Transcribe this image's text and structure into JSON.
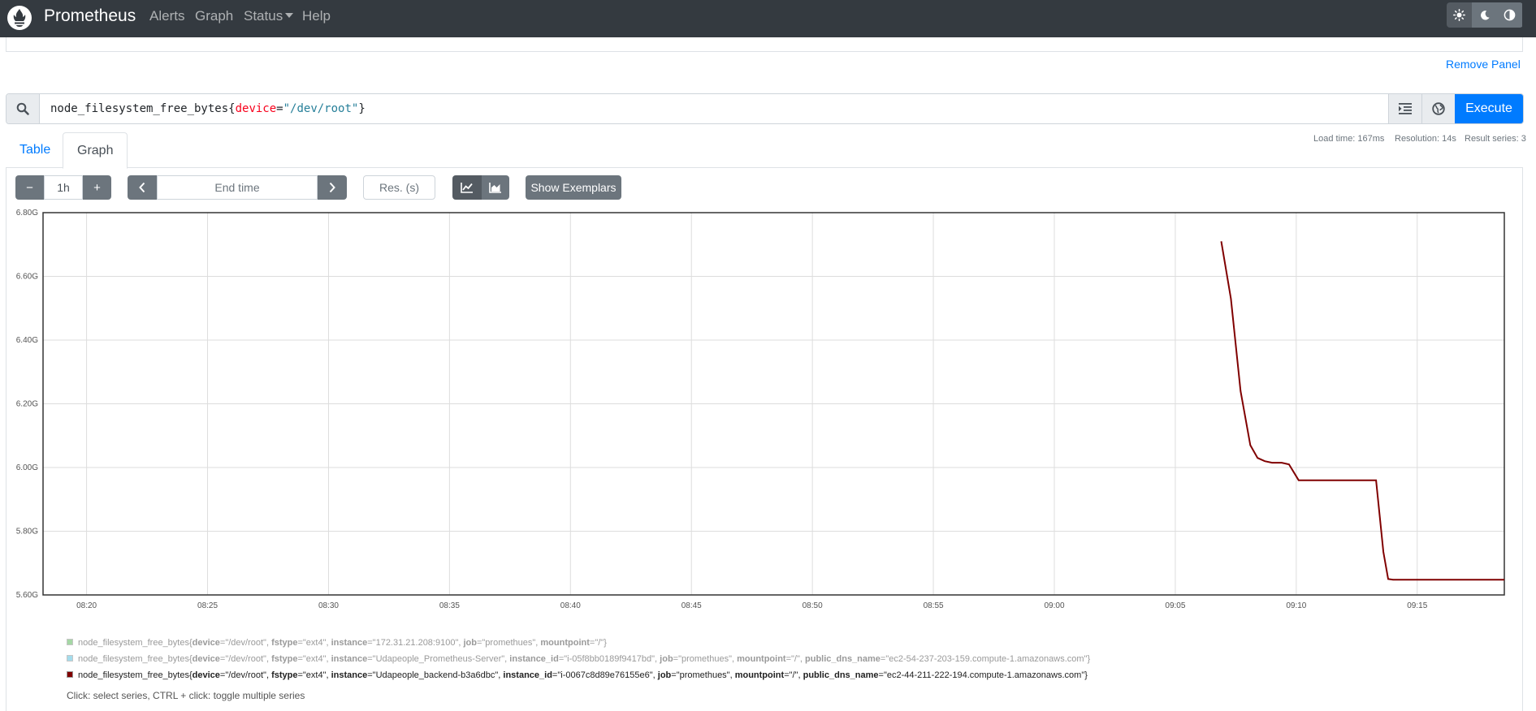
{
  "navbar": {
    "brand": "Prometheus",
    "items": [
      {
        "label": "Alerts"
      },
      {
        "label": "Graph"
      },
      {
        "label": "Status"
      },
      {
        "label": "Help"
      }
    ],
    "theme_icons": [
      "sun-icon",
      "moon-icon",
      "contrast-icon"
    ]
  },
  "panel": {
    "remove_label": "Remove Panel",
    "expression": {
      "metric": "node_filesystem_free_bytes",
      "open": "{",
      "label_name": "device",
      "eq": "=",
      "label_value": "\"/dev/root\"",
      "close": "}"
    },
    "execute_label": "Execute",
    "stats": {
      "load_time": "Load time: 167ms",
      "resolution": "Resolution: 14s",
      "result_series": "Result series: 3"
    },
    "tabs": [
      {
        "label": "Table"
      },
      {
        "label": "Graph"
      }
    ],
    "controls": {
      "minus": "−",
      "range": "1h",
      "plus": "+",
      "end_time_placeholder": "End time",
      "res_placeholder": "Res. (s)",
      "show_exemplars": "Show Exemplars"
    }
  },
  "chart_data": {
    "type": "line",
    "x_ticks": [
      "08:20",
      "08:25",
      "08:30",
      "08:35",
      "08:40",
      "08:45",
      "08:50",
      "08:55",
      "09:00",
      "09:05",
      "09:10",
      "09:15"
    ],
    "y_ticks": [
      "5.60G",
      "5.80G",
      "6.00G",
      "6.20G",
      "6.40G",
      "6.60G",
      "6.80G"
    ],
    "ylim": [
      5.6,
      6.8
    ],
    "y_unit": "G",
    "x_unit": "minutes after 08:20",
    "xlim": [
      -1.8,
      58.6
    ],
    "grid": true,
    "series": [
      {
        "color": "#800000",
        "x": [
          46.9,
          47.3,
          47.7,
          48.1,
          48.4,
          48.7,
          49.0,
          49.4,
          49.7,
          50.1,
          50.7,
          51.4,
          52.0,
          52.6,
          53.3,
          53.6,
          53.8,
          54.0,
          56.0,
          58.6
        ],
        "y": [
          6.71,
          6.53,
          6.24,
          6.07,
          6.03,
          6.02,
          6.015,
          6.015,
          6.01,
          5.96,
          5.96,
          5.96,
          5.96,
          5.96,
          5.96,
          5.735,
          5.65,
          5.648,
          5.648,
          5.648
        ]
      }
    ]
  },
  "legend": {
    "items": [
      {
        "color": "#5cb85c",
        "muted": true,
        "metric": "node_filesystem_free_bytes",
        "labels": [
          {
            "k": "device",
            "v": "\"/dev/root\""
          },
          {
            "k": "fstype",
            "v": "\"ext4\""
          },
          {
            "k": "instance",
            "v": "\"172.31.21.208:9100\""
          },
          {
            "k": "job",
            "v": "\"promethues\""
          },
          {
            "k": "mountpoint",
            "v": "\"/\""
          }
        ]
      },
      {
        "color": "#5bc0de",
        "muted": true,
        "metric": "node_filesystem_free_bytes",
        "labels": [
          {
            "k": "device",
            "v": "\"/dev/root\""
          },
          {
            "k": "fstype",
            "v": "\"ext4\""
          },
          {
            "k": "instance",
            "v": "\"Udapeople_Prometheus-Server\""
          },
          {
            "k": "instance_id",
            "v": "\"i-05f8bb0189f9417bd\""
          },
          {
            "k": "job",
            "v": "\"promethues\""
          },
          {
            "k": "mountpoint",
            "v": "\"/\""
          },
          {
            "k": "public_dns_name",
            "v": "\"ec2-54-237-203-159.compute-1.amazonaws.com\""
          }
        ]
      },
      {
        "color": "#800000",
        "muted": false,
        "metric": "node_filesystem_free_bytes",
        "labels": [
          {
            "k": "device",
            "v": "\"/dev/root\""
          },
          {
            "k": "fstype",
            "v": "\"ext4\""
          },
          {
            "k": "instance",
            "v": "\"Udapeople_backend-b3a6dbc\""
          },
          {
            "k": "instance_id",
            "v": "\"i-0067c8d89e76155e6\""
          },
          {
            "k": "job",
            "v": "\"promethues\""
          },
          {
            "k": "mountpoint",
            "v": "\"/\""
          },
          {
            "k": "public_dns_name",
            "v": "\"ec2-44-211-222-194.compute-1.amazonaws.com\""
          }
        ]
      }
    ],
    "hint": "Click: select series, CTRL + click: toggle multiple series"
  }
}
